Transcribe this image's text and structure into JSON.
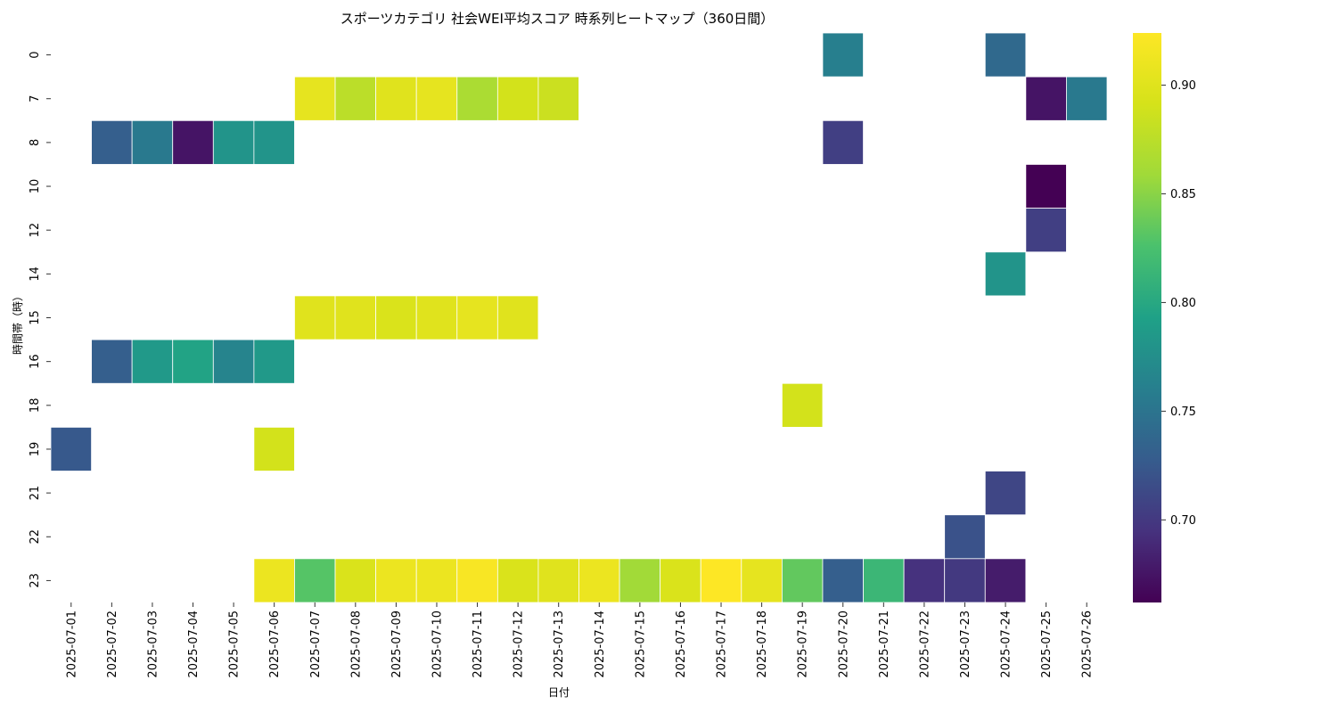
{
  "chart_data": {
    "type": "heatmap",
    "title": "スポーツカテゴリ 社会WEI平均スコア 時系列ヒートマップ（360日間）",
    "xlabel": "日付",
    "ylabel": "時間帯（時）",
    "x": [
      "2025-07-01",
      "2025-07-02",
      "2025-07-03",
      "2025-07-04",
      "2025-07-05",
      "2025-07-06",
      "2025-07-07",
      "2025-07-08",
      "2025-07-09",
      "2025-07-10",
      "2025-07-11",
      "2025-07-12",
      "2025-07-13",
      "2025-07-14",
      "2025-07-15",
      "2025-07-16",
      "2025-07-17",
      "2025-07-18",
      "2025-07-19",
      "2025-07-20",
      "2025-07-21",
      "2025-07-22",
      "2025-07-23",
      "2025-07-24",
      "2025-07-25",
      "2025-07-26"
    ],
    "y": [
      "0",
      "7",
      "8",
      "10",
      "12",
      "14",
      "15",
      "16",
      "18",
      "19",
      "21",
      "22",
      "23"
    ],
    "colormap": "viridis",
    "vmin": 0.662,
    "vmax": 0.924,
    "colorbar_ticks": [
      "0.70",
      "0.75",
      "0.80",
      "0.85",
      "0.90"
    ],
    "values": [
      [
        null,
        null,
        null,
        null,
        null,
        null,
        null,
        null,
        null,
        null,
        null,
        null,
        null,
        null,
        null,
        null,
        null,
        null,
        null,
        0.76,
        null,
        null,
        null,
        0.74,
        null,
        null
      ],
      [
        null,
        null,
        null,
        null,
        null,
        null,
        0.905,
        0.875,
        0.9,
        0.905,
        0.865,
        0.89,
        0.885,
        null,
        null,
        null,
        null,
        null,
        null,
        null,
        null,
        null,
        null,
        null,
        0.675,
        0.755
      ],
      [
        null,
        0.73,
        0.755,
        0.675,
        0.78,
        0.78,
        null,
        null,
        null,
        null,
        null,
        null,
        null,
        null,
        null,
        null,
        null,
        null,
        null,
        0.705,
        null,
        null,
        null,
        null,
        null,
        null
      ],
      [
        null,
        null,
        null,
        null,
        null,
        null,
        null,
        null,
        null,
        null,
        null,
        null,
        null,
        null,
        null,
        null,
        null,
        null,
        null,
        null,
        null,
        null,
        null,
        null,
        0.662,
        null
      ],
      [
        null,
        null,
        null,
        null,
        null,
        null,
        null,
        null,
        null,
        null,
        null,
        null,
        null,
        null,
        null,
        null,
        null,
        null,
        null,
        null,
        null,
        null,
        null,
        null,
        0.705,
        null
      ],
      [
        null,
        null,
        null,
        null,
        null,
        null,
        null,
        null,
        null,
        null,
        null,
        null,
        null,
        null,
        null,
        null,
        null,
        null,
        null,
        null,
        null,
        null,
        null,
        0.78,
        null,
        null
      ],
      [
        null,
        null,
        null,
        null,
        null,
        null,
        0.9,
        0.9,
        0.895,
        0.9,
        0.905,
        0.9,
        null,
        null,
        null,
        null,
        null,
        null,
        null,
        null,
        null,
        null,
        null,
        null,
        null,
        null
      ],
      [
        null,
        0.73,
        0.785,
        0.795,
        0.765,
        0.785,
        null,
        null,
        null,
        null,
        null,
        null,
        null,
        null,
        null,
        null,
        null,
        null,
        null,
        null,
        null,
        null,
        null,
        null,
        null,
        null
      ],
      [
        null,
        null,
        null,
        null,
        null,
        null,
        null,
        null,
        null,
        null,
        null,
        null,
        null,
        null,
        null,
        null,
        null,
        null,
        0.89,
        null,
        null,
        null,
        null,
        null,
        null,
        null
      ],
      [
        0.725,
        null,
        null,
        null,
        null,
        0.89,
        null,
        null,
        null,
        null,
        null,
        null,
        null,
        null,
        null,
        null,
        null,
        null,
        null,
        null,
        null,
        null,
        null,
        null,
        null,
        null
      ],
      [
        null,
        null,
        null,
        null,
        null,
        null,
        null,
        null,
        null,
        null,
        null,
        null,
        null,
        null,
        null,
        null,
        null,
        null,
        null,
        null,
        null,
        null,
        null,
        0.71,
        null,
        null
      ],
      [
        null,
        null,
        null,
        null,
        null,
        null,
        null,
        null,
        null,
        null,
        null,
        null,
        null,
        null,
        null,
        null,
        null,
        null,
        null,
        null,
        null,
        null,
        0.72,
        null,
        null,
        null
      ],
      [
        null,
        null,
        null,
        null,
        null,
        0.91,
        0.83,
        0.895,
        0.91,
        0.91,
        0.92,
        0.895,
        0.9,
        0.91,
        0.86,
        0.895,
        0.924,
        0.905,
        0.835,
        0.73,
        0.815,
        0.695,
        0.7,
        0.68,
        null,
        null
      ]
    ]
  }
}
